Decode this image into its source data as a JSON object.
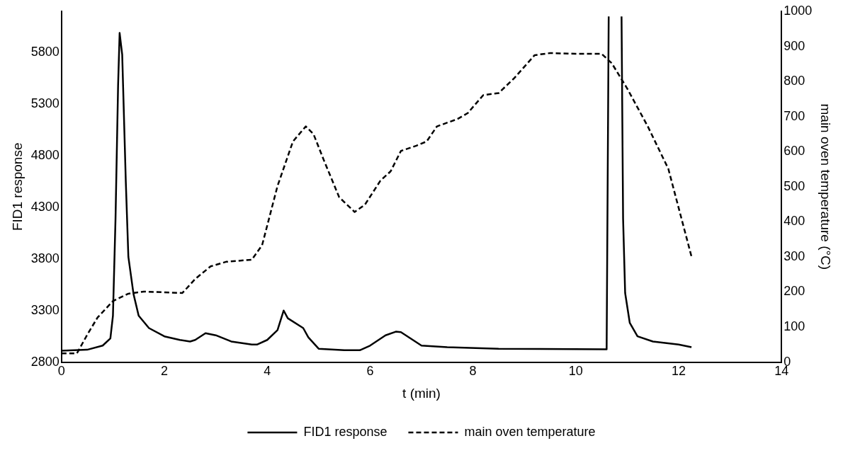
{
  "chart_data": {
    "type": "line",
    "xlabel": "t (min)",
    "ylabel": "FID1 response",
    "y2label": "main oven temperature (°C)",
    "xlim": [
      0,
      14
    ],
    "xticks": [
      0,
      2,
      4,
      6,
      8,
      10,
      12,
      14
    ],
    "ylim": [
      2800,
      6200
    ],
    "yticks": [
      2800,
      3300,
      3800,
      4300,
      4800,
      5300,
      5800
    ],
    "y2lim": [
      0,
      1000
    ],
    "y2ticks": [
      0,
      100,
      200,
      300,
      400,
      500,
      600,
      700,
      800,
      900,
      1000
    ],
    "grid": false,
    "legend": "bottom",
    "marker": "none",
    "series": [
      {
        "name": "FID1 response",
        "color": "#000000",
        "line_style": "solid",
        "x": [
          0,
          0.5,
          0.8,
          0.95,
          1.0,
          1.05,
          1.1,
          1.13,
          1.18,
          1.25,
          1.3,
          1.4,
          1.5,
          1.7,
          2.0,
          2.3,
          2.5,
          2.6,
          2.8,
          3.0,
          3.3,
          3.7,
          3.8,
          4.0,
          4.2,
          4.32,
          4.4,
          4.7,
          4.8,
          5.0,
          5.5,
          5.8,
          6.0,
          6.3,
          6.5,
          6.6,
          6.8,
          7.0,
          7.5,
          8.5,
          10.6,
          10.64,
          10.65,
          10.88,
          10.89,
          10.92,
          10.96,
          11.05,
          11.2,
          11.5,
          12.0,
          12.25
        ],
        "values": [
          2910,
          2920,
          2960,
          3030,
          3250,
          4190,
          5480,
          5990,
          5780,
          4550,
          3820,
          3460,
          3250,
          3130,
          3050,
          3015,
          3000,
          3015,
          3080,
          3060,
          3000,
          2970,
          2970,
          3015,
          3110,
          3300,
          3225,
          3130,
          3040,
          2930,
          2915,
          2915,
          2960,
          3060,
          3095,
          3090,
          3025,
          2960,
          2945,
          2930,
          2925,
          6150,
          null,
          null,
          6150,
          4190,
          3470,
          3180,
          3050,
          3000,
          2970,
          2945
        ]
      },
      {
        "name": "main oven temperature",
        "color": "#000000",
        "line_style": "dashed",
        "axis": "y2",
        "x": [
          0,
          0.3,
          0.5,
          0.7,
          1.0,
          1.3,
          1.6,
          2.0,
          2.35,
          2.6,
          2.9,
          3.2,
          3.7,
          3.9,
          4.2,
          4.5,
          4.75,
          4.9,
          5.1,
          5.4,
          5.7,
          5.9,
          6.2,
          6.4,
          6.6,
          6.9,
          7.1,
          7.3,
          7.7,
          7.9,
          8.2,
          8.5,
          8.8,
          9.2,
          9.5,
          10.0,
          10.5,
          10.7,
          11.0,
          11.4,
          11.8,
          12.25
        ],
        "values": [
          25,
          25,
          78,
          127,
          174,
          195,
          201,
          199,
          197,
          237,
          273,
          286,
          292,
          333,
          502,
          629,
          672,
          650,
          576,
          470,
          428,
          449,
          517,
          544,
          602,
          617,
          629,
          672,
          693,
          710,
          761,
          767,
          809,
          875,
          881,
          879,
          879,
          852,
          780,
          672,
          551,
          301
        ]
      }
    ]
  }
}
